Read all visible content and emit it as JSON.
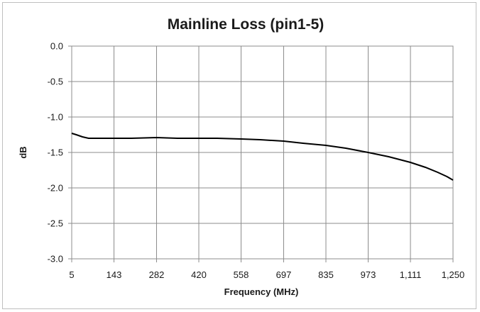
{
  "chart_data": {
    "type": "line",
    "title": "Mainline Loss (pin1-5)",
    "xlabel": "Frequency (MHz)",
    "ylabel": "dB",
    "xlim": [
      5,
      1250
    ],
    "ylim": [
      -3.0,
      0.0
    ],
    "x_ticks": [
      5,
      143,
      282,
      420,
      558,
      697,
      835,
      973,
      1111,
      1250
    ],
    "x_tick_labels": [
      "5",
      "143",
      "282",
      "420",
      "558",
      "697",
      "835",
      "973",
      "1,111",
      "1,250"
    ],
    "y_ticks": [
      0.0,
      -0.5,
      -1.0,
      -1.5,
      -2.0,
      -2.5,
      -3.0
    ],
    "y_tick_labels": [
      "0.0",
      "-0.5",
      "-1.0",
      "-1.5",
      "-2.0",
      "-2.5",
      "-3.0"
    ],
    "grid": true,
    "legend": "none",
    "line_color": "#000000",
    "series": [
      {
        "x": [
          5,
          20,
          40,
          60,
          80,
          100,
          143,
          200,
          282,
          350,
          420,
          480,
          558,
          620,
          697,
          760,
          835,
          900,
          973,
          1040,
          1111,
          1160,
          1200,
          1230,
          1250
        ],
        "values": [
          -1.23,
          -1.25,
          -1.28,
          -1.3,
          -1.3,
          -1.3,
          -1.3,
          -1.3,
          -1.29,
          -1.3,
          -1.3,
          -1.3,
          -1.31,
          -1.32,
          -1.34,
          -1.37,
          -1.4,
          -1.44,
          -1.5,
          -1.56,
          -1.64,
          -1.71,
          -1.78,
          -1.84,
          -1.89
        ]
      }
    ]
  }
}
